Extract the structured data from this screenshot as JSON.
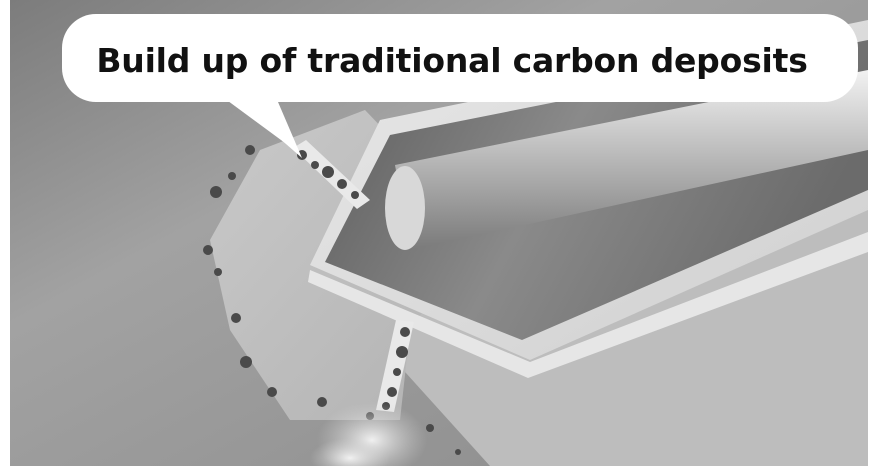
{
  "callout": {
    "text": "Build up of traditional carbon deposits"
  }
}
